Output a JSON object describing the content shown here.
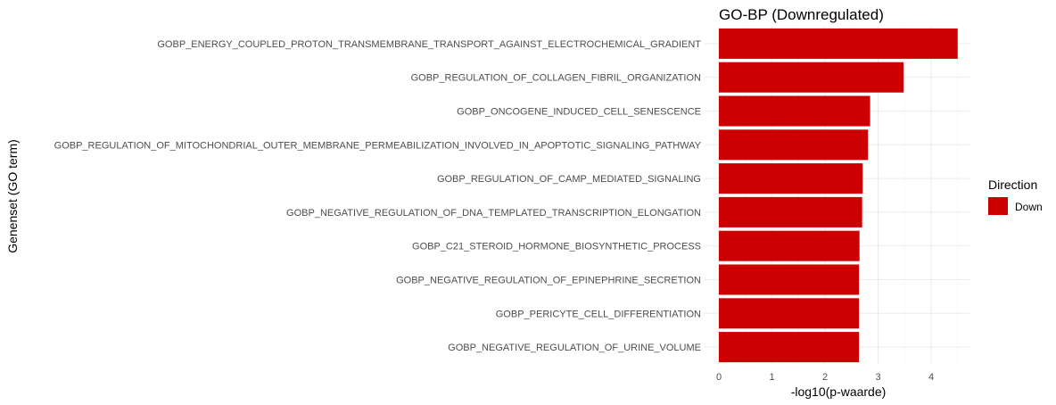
{
  "chart_data": {
    "type": "bar",
    "orientation": "horizontal",
    "title": "GO-BP (Downregulated)",
    "xlabel": "-log10(p-waarde)",
    "ylabel": "Genenset (GO term)",
    "xlim": [
      0,
      4.6
    ],
    "xticks": [
      "0",
      "1",
      "2",
      "3",
      "4"
    ],
    "grid": true,
    "categories": [
      "GOBP_ENERGY_COUPLED_PROTON_TRANSMEMBRANE_TRANSPORT_AGAINST_ELECTROCHEMICAL_GRADIENT",
      "GOBP_REGULATION_OF_COLLAGEN_FIBRIL_ORGANIZATION",
      "GOBP_ONCOGENE_INDUCED_CELL_SENESCENCE",
      "GOBP_REGULATION_OF_MITOCHONDRIAL_OUTER_MEMBRANE_PERMEABILIZATION_INVOLVED_IN_APOPTOTIC_SIGNALING_PATHWAY",
      "GOBP_REGULATION_OF_CAMP_MEDIATED_SIGNALING",
      "GOBP_NEGATIVE_REGULATION_OF_DNA_TEMPLATED_TRANSCRIPTION_ELONGATION",
      "GOBP_C21_STEROID_HORMONE_BIOSYNTHETIC_PROCESS",
      "GOBP_NEGATIVE_REGULATION_OF_EPINEPHRINE_SECRETION",
      "GOBP_PERICYTE_CELL_DIFFERENTIATION",
      "GOBP_NEGATIVE_REGULATION_OF_URINE_VOLUME"
    ],
    "series": [
      {
        "name": "Down",
        "color": "#cc0000",
        "values": [
          4.5,
          3.48,
          2.85,
          2.81,
          2.71,
          2.7,
          2.65,
          2.64,
          2.64,
          2.64
        ]
      }
    ],
    "legend": {
      "title": "Direction",
      "position": "right",
      "items": [
        {
          "label": "Down",
          "color": "#cc0000"
        }
      ]
    }
  }
}
